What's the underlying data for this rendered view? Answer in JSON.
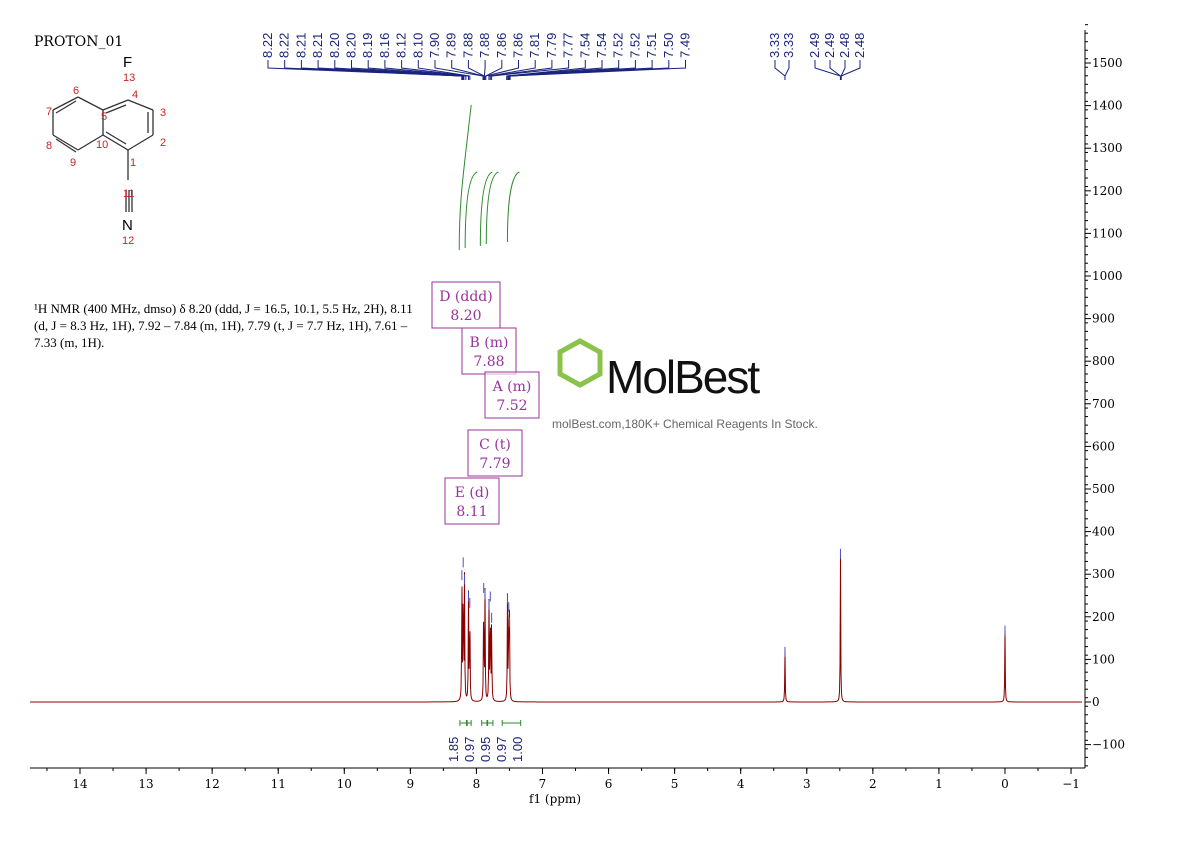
{
  "title": "PROTON_01",
  "nmr_text": "¹H NMR (400 MHz, dmso) δ 8.20 (ddd, J = 16.5, 10.1, 5.5 Hz, 2H), 8.11 (d, J = 8.3 Hz, 1H), 7.92 – 7.84 (m, 1H), 7.79 (t, J = 7.7 Hz, 1H), 7.61 – 7.33 (m, 1H).",
  "structure": {
    "atoms": [
      "F",
      "N"
    ],
    "numbers": [
      "1",
      "2",
      "3",
      "4",
      "5",
      "6",
      "7",
      "8",
      "9",
      "10",
      "11",
      "12",
      "13"
    ]
  },
  "watermark": {
    "logo": "MolBest",
    "tagline": "molBest.com,180K+ Chemical Reagents In Stock."
  },
  "colors": {
    "spectrum": "#8b0000",
    "labels": "#1a237e",
    "integral": "#2e8b2e",
    "multiplet": "#993399"
  },
  "chart_data": {
    "type": "line",
    "xlabel": "f1 (ppm)",
    "xlim": [
      14.8,
      -1.1
    ],
    "ylim": [
      -150,
      1600
    ],
    "xticks": [
      14,
      13,
      12,
      11,
      10,
      9,
      8,
      7,
      6,
      5,
      4,
      3,
      2,
      1,
      0,
      -1
    ],
    "yticks": [
      -100,
      0,
      100,
      200,
      300,
      400,
      500,
      600,
      700,
      800,
      900,
      1000,
      1100,
      1200,
      1300,
      1400,
      1500
    ],
    "peak_labels_group1": [
      "8.22",
      "8.22",
      "8.21",
      "8.21",
      "8.20",
      "8.20",
      "8.19",
      "8.16",
      "8.12",
      "8.10",
      "7.90",
      "7.89",
      "7.88",
      "7.88",
      "7.86",
      "7.86",
      "7.81",
      "7.79",
      "7.77",
      "7.54",
      "7.54",
      "7.52",
      "7.52",
      "7.51",
      "7.50",
      "7.49"
    ],
    "peak_labels_group2": [
      "3.33",
      "3.33"
    ],
    "peak_labels_group3": [
      "2.49",
      "2.49",
      "2.48",
      "2.48"
    ],
    "peaks": [
      {
        "ppm": 8.22,
        "h": 300
      },
      {
        "ppm": 8.2,
        "h": 330
      },
      {
        "ppm": 8.18,
        "h": 290
      },
      {
        "ppm": 8.12,
        "h": 250
      },
      {
        "ppm": 8.1,
        "h": 235
      },
      {
        "ppm": 7.89,
        "h": 270
      },
      {
        "ppm": 7.87,
        "h": 255
      },
      {
        "ppm": 7.81,
        "h": 230
      },
      {
        "ppm": 7.79,
        "h": 250
      },
      {
        "ppm": 7.77,
        "h": 200
      },
      {
        "ppm": 7.53,
        "h": 245
      },
      {
        "ppm": 7.51,
        "h": 225
      },
      {
        "ppm": 7.5,
        "h": 190
      },
      {
        "ppm": 3.33,
        "h": 120
      },
      {
        "ppm": 2.49,
        "h": 350
      },
      {
        "ppm": 0.0,
        "h": 170
      }
    ],
    "multiplets": [
      {
        "label": "D (ddd)",
        "shift": "8.20"
      },
      {
        "label": "B (m)",
        "shift": "7.88"
      },
      {
        "label": "A (m)",
        "shift": "7.52"
      },
      {
        "label": "C (t)",
        "shift": "7.79"
      },
      {
        "label": "E (d)",
        "shift": "8.11"
      }
    ],
    "integrals": [
      {
        "value": "1.85",
        "from": 8.25,
        "to": 8.15
      },
      {
        "value": "0.97",
        "from": 8.14,
        "to": 8.08
      },
      {
        "value": "0.95",
        "from": 7.92,
        "to": 7.84
      },
      {
        "value": "0.97",
        "from": 7.83,
        "to": 7.75
      },
      {
        "value": "1.00",
        "from": 7.61,
        "to": 7.33
      }
    ]
  }
}
